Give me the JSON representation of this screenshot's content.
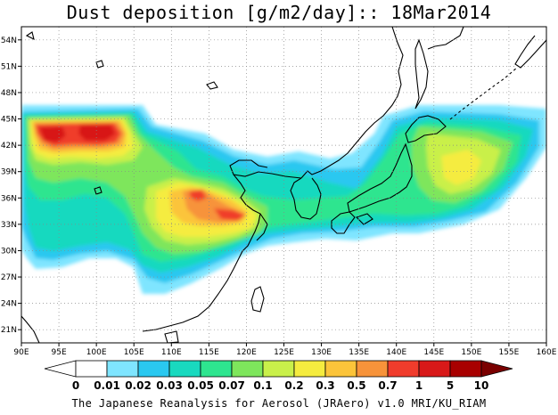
{
  "title": "Dust deposition [g/m2/day]:: 18Mar2014",
  "footer": "The Japanese Reanalysis for Aerosol (JRAero) v1.0 MRI/KU_RIAM",
  "map": {
    "lon_range": [
      90,
      160
    ],
    "lat_range": [
      19.5,
      55.5
    ],
    "lon_ticks": [
      "90E",
      "95E",
      "100E",
      "105E",
      "110E",
      "115E",
      "120E",
      "125E",
      "130E",
      "135E",
      "140E",
      "145E",
      "150E",
      "155E",
      "160E"
    ],
    "lat_ticks": [
      "21N",
      "24N",
      "27N",
      "30N",
      "33N",
      "36N",
      "39N",
      "42N",
      "45N",
      "48N",
      "51N",
      "54N"
    ],
    "gridlines": "dotted",
    "variable": "Dust deposition",
    "units": "g/m2/day",
    "date": "18Mar2014"
  },
  "colorbar": {
    "labels": [
      "0",
      "0.01",
      "0.02",
      "0.03",
      "0.05",
      "0.07",
      "0.1",
      "0.2",
      "0.3",
      "0.5",
      "0.7",
      "1",
      "5",
      "10"
    ],
    "colors": [
      "#ffffff",
      "#ffffff",
      "#7fe5ff",
      "#2ac8f0",
      "#19d9bf",
      "#2ee58f",
      "#7ee65c",
      "#c9f04a",
      "#f5ec3f",
      "#fbc43a",
      "#f7933a",
      "#f03c2c",
      "#d81919",
      "#a80000",
      "#7a0000"
    ]
  }
}
